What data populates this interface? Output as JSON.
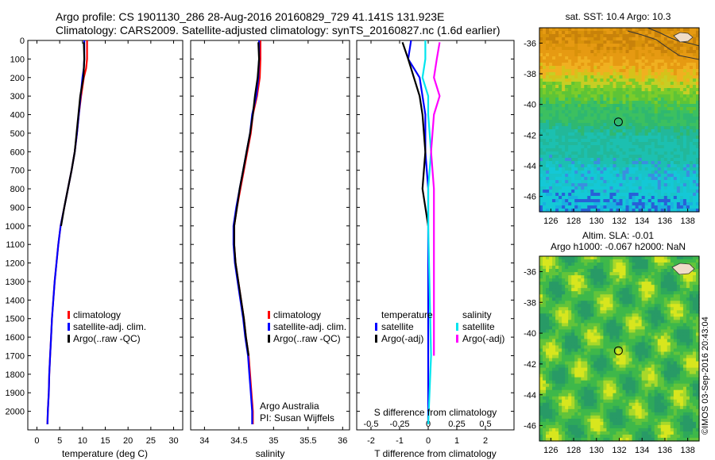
{
  "header": {
    "line1": "Argo profile: CS 1901130_286 28-Aug-2016 20160829_729 41.141S 131.923E",
    "line2": "Climatology: CARS2009. Satellite-adjusted climatology: synTS_20160827.nc (1.6d earlier)"
  },
  "colors": {
    "climatology": "#ff0000",
    "satellite": "#0000ff",
    "argo": "#000000",
    "satellite_salinity": "#00e5ee",
    "argo_salinity": "#ff00ff"
  },
  "credits": {
    "org": "Argo Australia",
    "pi": "PI: Susan Wijffels",
    "stamp": "©IMOS 03-Sep-2016 20:43:04"
  },
  "chart_data": [
    {
      "id": "temperature",
      "type": "line",
      "xlabel": "temperature (deg C)",
      "ylabel": "",
      "xlim": [
        -2,
        32
      ],
      "ylim": [
        2100,
        0
      ],
      "xticks": [
        0,
        5,
        10,
        15,
        20,
        25,
        30
      ],
      "yticks": [
        0,
        100,
        200,
        300,
        400,
        500,
        600,
        700,
        800,
        900,
        1000,
        1100,
        1200,
        1300,
        1400,
        1500,
        1600,
        1700,
        1800,
        1900,
        2000
      ],
      "legend": [
        "climatology",
        "satellite-adj. clim.",
        "Argo(..raw -QC)"
      ],
      "series": [
        {
          "name": "climatology",
          "color": "#ff0000",
          "points": [
            [
              11,
              0
            ],
            [
              11,
              100
            ],
            [
              10.8,
              150
            ],
            [
              10.3,
              200
            ],
            [
              9.7,
              300
            ],
            [
              9.2,
              400
            ],
            [
              8.8,
              500
            ],
            [
              8.3,
              600
            ],
            [
              7.6,
              700
            ],
            [
              6.8,
              800
            ],
            [
              6,
              900
            ],
            [
              5.2,
              1000
            ],
            [
              4.7,
              1100
            ],
            [
              4.3,
              1200
            ],
            [
              3.9,
              1300
            ],
            [
              3.6,
              1400
            ],
            [
              3.3,
              1500
            ],
            [
              3.1,
              1600
            ],
            [
              2.9,
              1700
            ],
            [
              2.7,
              1800
            ],
            [
              2.6,
              1900
            ],
            [
              2.4,
              2000
            ],
            [
              2.3,
              2070
            ]
          ]
        },
        {
          "name": "satellite-adj. clim.",
          "color": "#0000ff",
          "points": [
            [
              10.4,
              0
            ],
            [
              10.4,
              100
            ],
            [
              10.3,
              150
            ],
            [
              10,
              200
            ],
            [
              9.6,
              300
            ],
            [
              9.2,
              400
            ],
            [
              8.8,
              500
            ],
            [
              8.3,
              600
            ],
            [
              7.6,
              700
            ],
            [
              6.8,
              800
            ],
            [
              6,
              900
            ],
            [
              5.2,
              1000
            ],
            [
              4.7,
              1100
            ],
            [
              4.3,
              1200
            ],
            [
              3.9,
              1300
            ],
            [
              3.6,
              1400
            ],
            [
              3.3,
              1500
            ],
            [
              3.1,
              1600
            ],
            [
              2.9,
              1700
            ],
            [
              2.7,
              1800
            ],
            [
              2.6,
              1900
            ],
            [
              2.4,
              2000
            ],
            [
              2.3,
              2070
            ]
          ]
        },
        {
          "name": "Argo(..raw -QC)",
          "color": "#000000",
          "points": [
            [
              10.3,
              10
            ],
            [
              10.4,
              100
            ],
            [
              10.2,
              200
            ],
            [
              9.5,
              300
            ],
            [
              9.1,
              400
            ],
            [
              8.7,
              500
            ],
            [
              8.3,
              600
            ],
            [
              7.6,
              700
            ],
            [
              6.8,
              800
            ],
            [
              6,
              900
            ],
            [
              5.3,
              1000
            ]
          ]
        }
      ]
    },
    {
      "id": "salinity",
      "type": "line",
      "xlabel": "salinity",
      "ylabel": "",
      "xlim": [
        33.8,
        36.1
      ],
      "ylim": [
        2100,
        0
      ],
      "xticks": [
        34,
        34.5,
        35,
        35.5,
        36
      ],
      "legend": [
        "climatology",
        "satellite-adj. clim.",
        "Argo(..raw -QC)"
      ],
      "series": [
        {
          "name": "climatology",
          "color": "#ff0000",
          "points": [
            [
              34.81,
              0
            ],
            [
              34.81,
              100
            ],
            [
              34.8,
              200
            ],
            [
              34.76,
              300
            ],
            [
              34.7,
              400
            ],
            [
              34.67,
              500
            ],
            [
              34.62,
              600
            ],
            [
              34.57,
              700
            ],
            [
              34.52,
              800
            ],
            [
              34.47,
              900
            ],
            [
              34.43,
              1000
            ],
            [
              34.43,
              1100
            ],
            [
              34.45,
              1200
            ],
            [
              34.49,
              1300
            ],
            [
              34.53,
              1400
            ],
            [
              34.57,
              1500
            ],
            [
              34.6,
              1600
            ],
            [
              34.64,
              1700
            ],
            [
              34.66,
              1800
            ],
            [
              34.68,
              1900
            ],
            [
              34.7,
              2000
            ],
            [
              34.7,
              2070
            ]
          ]
        },
        {
          "name": "satellite-adj. clim.",
          "color": "#0000ff",
          "points": [
            [
              34.79,
              0
            ],
            [
              34.79,
              100
            ],
            [
              34.78,
              200
            ],
            [
              34.75,
              300
            ],
            [
              34.69,
              400
            ],
            [
              34.66,
              500
            ],
            [
              34.61,
              600
            ],
            [
              34.56,
              700
            ],
            [
              34.51,
              800
            ],
            [
              34.46,
              900
            ],
            [
              34.42,
              1000
            ],
            [
              34.42,
              1100
            ],
            [
              34.44,
              1200
            ],
            [
              34.48,
              1300
            ],
            [
              34.52,
              1400
            ],
            [
              34.56,
              1500
            ],
            [
              34.59,
              1600
            ],
            [
              34.63,
              1700
            ],
            [
              34.65,
              1800
            ],
            [
              34.67,
              1900
            ],
            [
              34.69,
              2000
            ],
            [
              34.69,
              2070
            ]
          ]
        },
        {
          "name": "Argo(..raw -QC)",
          "color": "#000000",
          "points": [
            [
              34.78,
              10
            ],
            [
              34.79,
              100
            ],
            [
              34.77,
              200
            ],
            [
              34.73,
              300
            ],
            [
              34.7,
              400
            ],
            [
              34.66,
              500
            ],
            [
              34.61,
              600
            ],
            [
              34.56,
              700
            ],
            [
              34.51,
              800
            ],
            [
              34.47,
              900
            ],
            [
              34.43,
              1000
            ],
            [
              34.43,
              1100
            ],
            [
              34.45,
              1200
            ],
            [
              34.49,
              1300
            ],
            [
              34.53,
              1400
            ],
            [
              34.57,
              1500
            ],
            [
              34.6,
              1600
            ],
            [
              34.64,
              1700
            ]
          ]
        }
      ]
    },
    {
      "id": "difference",
      "type": "line",
      "xlabel": "T difference from climatology",
      "toplabel": "S difference from climatology",
      "ylim": [
        2100,
        0
      ],
      "xlim": [
        -2.5,
        3
      ],
      "xticks": [
        -2,
        -1,
        0,
        1,
        2
      ],
      "sticks": [
        {
          "label": "-0.5",
          "t": -2
        },
        {
          "label": "-0.25",
          "t": -1
        },
        {
          "label": "0",
          "t": 0
        },
        {
          "label": "0.25",
          "t": 1
        },
        {
          "label": "0.5",
          "t": 2
        }
      ],
      "legend_t_title": "temperature",
      "legend_s_title": "salinity",
      "legend_t": [
        "satellite",
        "Argo(-adj)"
      ],
      "legend_s": [
        "satellite",
        "Argo(-adj)"
      ],
      "series": [
        {
          "name": "satellite",
          "color": "#0000ff",
          "points": [
            [
              -0.6,
              0
            ],
            [
              -0.7,
              100
            ],
            [
              -0.3,
              200
            ],
            [
              -0.2,
              300
            ],
            [
              -0.1,
              400
            ],
            [
              -0.1,
              600
            ],
            [
              0,
              800
            ],
            [
              0,
              1000
            ],
            [
              0,
              2070
            ]
          ]
        },
        {
          "name": "Argo(-adj)",
          "color": "#000000",
          "points": [
            [
              -0.9,
              10
            ],
            [
              -0.7,
              100
            ],
            [
              -0.5,
              200
            ],
            [
              -0.3,
              300
            ],
            [
              -0.2,
              400
            ],
            [
              -0.1,
              600
            ],
            [
              -0.2,
              800
            ],
            [
              0,
              1000
            ]
          ]
        },
        {
          "name": "satellite",
          "color": "#00e5ee",
          "points": [
            [
              -0.1,
              0
            ],
            [
              -0.1,
              100
            ],
            [
              -0.2,
              200
            ],
            [
              0,
              300
            ],
            [
              0,
              400
            ],
            [
              0.1,
              600
            ],
            [
              0,
              800
            ],
            [
              0,
              1000
            ],
            [
              0.1,
              1700
            ],
            [
              0,
              2070
            ]
          ]
        },
        {
          "name": "Argo(-adj)",
          "color": "#ff00ff",
          "points": [
            [
              0.4,
              10
            ],
            [
              0.3,
              100
            ],
            [
              0.2,
              200
            ],
            [
              0.4,
              300
            ],
            [
              0.2,
              400
            ],
            [
              0.1,
              600
            ],
            [
              0.2,
              800
            ],
            [
              0.2,
              1000
            ],
            [
              0.2,
              1700
            ]
          ]
        }
      ]
    },
    {
      "id": "sst-map",
      "type": "heatmap",
      "title": "sat. SST: 10.4 Argo: 10.3",
      "xlim": [
        125,
        139
      ],
      "ylim": [
        -47,
        -35
      ],
      "xticks": [
        126,
        128,
        130,
        132,
        134,
        136,
        138
      ],
      "yticks": [
        -36,
        -38,
        -40,
        -42,
        -44,
        -46
      ],
      "marker": [
        131.923,
        -41.141
      ]
    },
    {
      "id": "sla-map",
      "type": "heatmap",
      "title1": "Altim. SLA: -0.01",
      "title2": "Argo h1000: -0.067 h2000: NaN",
      "xlim": [
        125,
        139
      ],
      "ylim": [
        -47,
        -35
      ],
      "xticks": [
        126,
        128,
        130,
        132,
        134,
        136,
        138
      ],
      "yticks": [
        -36,
        -38,
        -40,
        -42,
        -44,
        -46
      ],
      "marker": [
        131.923,
        -41.141
      ]
    }
  ]
}
